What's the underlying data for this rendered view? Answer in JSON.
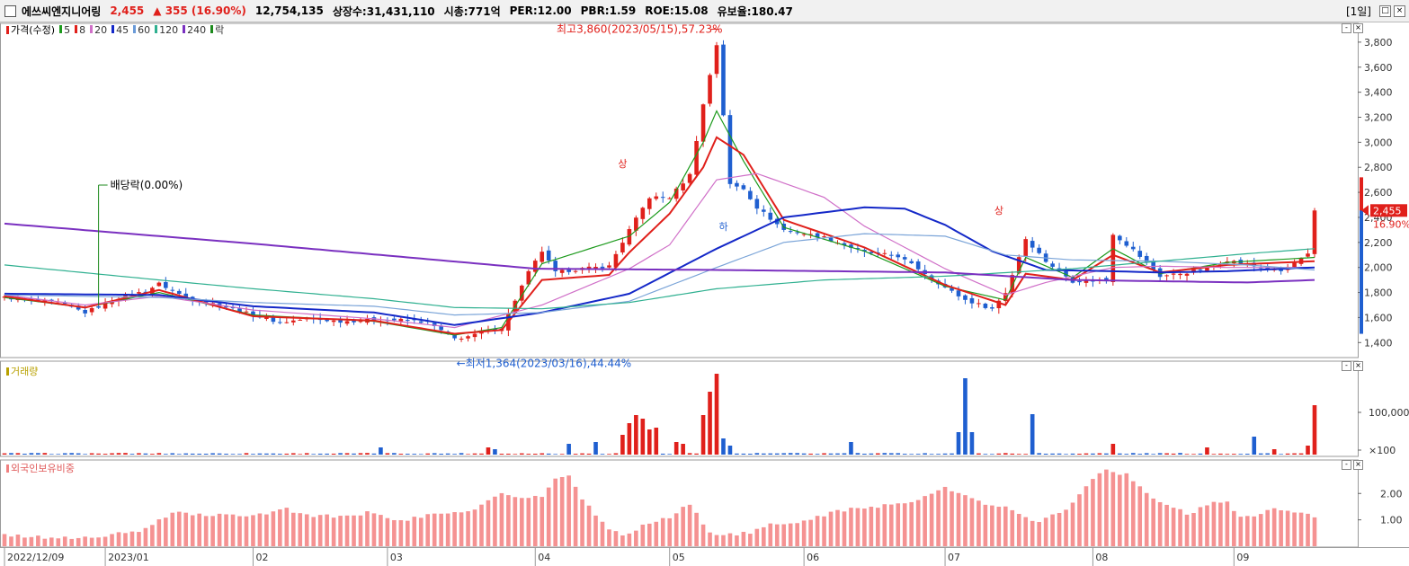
{
  "header": {
    "name": "에쓰씨엔지니어링",
    "price": "2,455",
    "change": "▲ 355 (16.90%)",
    "volume": "12,754,135",
    "listed": "상장수:31,431,110",
    "mcap": "시총:771억",
    "per": "PER:12.00",
    "pbr": "PBR:1.59",
    "roe": "ROE:15.08",
    "float": "유보율:180.47",
    "period": "[1일]"
  },
  "price_legend": {
    "price_label": "가격(수정)",
    "items": [
      {
        "label": "5",
        "color": "#1c9a1c"
      },
      {
        "label": "8",
        "color": "#e0201b"
      },
      {
        "label": "20",
        "color": "#d070c8"
      },
      {
        "label": "45",
        "color": "#1428c8"
      },
      {
        "label": "60",
        "color": "#6a9ad8"
      },
      {
        "label": "120",
        "color": "#2fb090"
      },
      {
        "label": "240",
        "color": "#7a30c0"
      },
      {
        "label": "락",
        "color": "#1c8a1c"
      }
    ]
  },
  "volume_legend": {
    "label": "거래량",
    "color": "#b8a000"
  },
  "foreign_legend": {
    "label": "외국인보유비중",
    "color": "#f08080"
  },
  "annotations": {
    "high": "최고3,860(2023/05/15),57.23%",
    "low": "최저1,364(2023/03/16),44.44%",
    "dividend": "배당락(0.00%)",
    "up_mark": "상",
    "down_mark": "하"
  },
  "price_badge": {
    "price": "2,455",
    "pct": "16.90%"
  },
  "colors": {
    "up": "#e0201b",
    "down": "#1f5fd0",
    "foreign": "#f59292"
  },
  "chart_data": [
    {
      "type": "candlestick",
      "title": "가격(수정)",
      "y_ticks": [
        "3,800",
        "3,600",
        "3,400",
        "3,200",
        "3,000",
        "2,800",
        "2,600",
        "2,400",
        "2,200",
        "2,000",
        "1,800",
        "1,600",
        "1,400"
      ],
      "y_tick_values": [
        3800,
        3600,
        3400,
        3200,
        3000,
        2800,
        2600,
        2400,
        2200,
        2000,
        1800,
        1600,
        1400
      ],
      "ylim": [
        1280,
        3950
      ],
      "x_labels": [
        "2022/12/09",
        "2023/01",
        "02",
        "03",
        "04",
        "05",
        "06",
        "07",
        "08",
        "09"
      ],
      "x_label_days": [
        0,
        15,
        37,
        57,
        79,
        99,
        119,
        140,
        162,
        183
      ],
      "days": 196,
      "series_anchors": [
        {
          "name": "close",
          "points": [
            [
              0,
              1760
            ],
            [
              8,
              1720
            ],
            [
              12,
              1640
            ],
            [
              17,
              1760
            ],
            [
              21,
              1810
            ],
            [
              23,
              1870
            ],
            [
              27,
              1760
            ],
            [
              32,
              1700
            ],
            [
              37,
              1620
            ],
            [
              41,
              1560
            ],
            [
              45,
              1590
            ],
            [
              50,
              1570
            ],
            [
              55,
              1580
            ],
            [
              60,
              1580
            ],
            [
              63,
              1560
            ],
            [
              67,
              1430
            ],
            [
              70,
              1460
            ],
            [
              74,
              1520
            ],
            [
              78,
              1960
            ],
            [
              80,
              2130
            ],
            [
              82,
              1960
            ],
            [
              86,
              1990
            ],
            [
              90,
              2010
            ],
            [
              93,
              2300
            ],
            [
              96,
              2560
            ],
            [
              99,
              2560
            ],
            [
              102,
              2740
            ],
            [
              104,
              3300
            ],
            [
              106,
              3780
            ],
            [
              108,
              2660
            ],
            [
              110,
              2630
            ],
            [
              112,
              2480
            ],
            [
              116,
              2300
            ],
            [
              122,
              2240
            ],
            [
              128,
              2120
            ],
            [
              133,
              2090
            ],
            [
              136,
              1990
            ],
            [
              140,
              1840
            ],
            [
              143,
              1740
            ],
            [
              147,
              1670
            ],
            [
              149,
              1800
            ],
            [
              152,
              2230
            ],
            [
              155,
              2050
            ],
            [
              159,
              1890
            ],
            [
              164,
              1900
            ],
            [
              165,
              2270
            ],
            [
              168,
              2140
            ],
            [
              172,
              1930
            ],
            [
              176,
              1960
            ],
            [
              180,
              2010
            ],
            [
              182,
              2060
            ],
            [
              186,
              2010
            ],
            [
              190,
              1970
            ],
            [
              194,
              2100
            ],
            [
              195,
              2455
            ]
          ]
        },
        {
          "name": "5",
          "points": [
            [
              0,
              1760
            ],
            [
              12,
              1680
            ],
            [
              23,
              1800
            ],
            [
              37,
              1620
            ],
            [
              55,
              1570
            ],
            [
              67,
              1460
            ],
            [
              74,
              1520
            ],
            [
              80,
              2030
            ],
            [
              93,
              2250
            ],
            [
              99,
              2520
            ],
            [
              104,
              3000
            ],
            [
              106,
              3250
            ],
            [
              110,
              2850
            ],
            [
              116,
              2320
            ],
            [
              128,
              2130
            ],
            [
              140,
              1850
            ],
            [
              149,
              1740
            ],
            [
              152,
              2080
            ],
            [
              159,
              1920
            ],
            [
              165,
              2150
            ],
            [
              172,
              1950
            ],
            [
              182,
              2040
            ],
            [
              195,
              2080
            ]
          ]
        },
        {
          "name": "8",
          "points": [
            [
              0,
              1770
            ],
            [
              12,
              1680
            ],
            [
              23,
              1820
            ],
            [
              37,
              1610
            ],
            [
              55,
              1575
            ],
            [
              67,
              1470
            ],
            [
              74,
              1500
            ],
            [
              80,
              1900
            ],
            [
              90,
              1940
            ],
            [
              93,
              2120
            ],
            [
              99,
              2430
            ],
            [
              104,
              2800
            ],
            [
              106,
              3040
            ],
            [
              110,
              2900
            ],
            [
              116,
              2380
            ],
            [
              128,
              2160
            ],
            [
              140,
              1860
            ],
            [
              149,
              1700
            ],
            [
              152,
              1950
            ],
            [
              159,
              1900
            ],
            [
              165,
              2100
            ],
            [
              172,
              1960
            ],
            [
              182,
              2020
            ],
            [
              195,
              2050
            ]
          ]
        },
        {
          "name": "20",
          "points": [
            [
              0,
              1780
            ],
            [
              12,
              1700
            ],
            [
              23,
              1770
            ],
            [
              37,
              1660
            ],
            [
              55,
              1590
            ],
            [
              67,
              1520
            ],
            [
              80,
              1700
            ],
            [
              93,
              1990
            ],
            [
              99,
              2180
            ],
            [
              106,
              2700
            ],
            [
              112,
              2750
            ],
            [
              122,
              2560
            ],
            [
              128,
              2330
            ],
            [
              140,
              1990
            ],
            [
              149,
              1780
            ],
            [
              155,
              1880
            ],
            [
              165,
              2000
            ],
            [
              172,
              2010
            ],
            [
              182,
              2000
            ],
            [
              195,
              2000
            ]
          ]
        },
        {
          "name": "45",
          "points": [
            [
              0,
              1790
            ],
            [
              23,
              1780
            ],
            [
              37,
              1690
            ],
            [
              55,
              1640
            ],
            [
              67,
              1540
            ],
            [
              80,
              1640
            ],
            [
              93,
              1790
            ],
            [
              106,
              2150
            ],
            [
              116,
              2400
            ],
            [
              128,
              2480
            ],
            [
              134,
              2470
            ],
            [
              140,
              2340
            ],
            [
              147,
              2130
            ],
            [
              155,
              1980
            ],
            [
              165,
              1970
            ],
            [
              172,
              1960
            ],
            [
              182,
              1970
            ],
            [
              195,
              2000
            ]
          ]
        },
        {
          "name": "60",
          "points": [
            [
              0,
              1780
            ],
            [
              23,
              1760
            ],
            [
              37,
              1720
            ],
            [
              55,
              1690
            ],
            [
              67,
              1620
            ],
            [
              80,
              1640
            ],
            [
              93,
              1730
            ],
            [
              106,
              2000
            ],
            [
              116,
              2200
            ],
            [
              128,
              2270
            ],
            [
              140,
              2250
            ],
            [
              149,
              2100
            ],
            [
              159,
              2060
            ],
            [
              172,
              2050
            ],
            [
              185,
              2020
            ],
            [
              195,
              1980
            ]
          ]
        },
        {
          "name": "120",
          "points": [
            [
              0,
              2020
            ],
            [
              23,
              1900
            ],
            [
              37,
              1830
            ],
            [
              55,
              1750
            ],
            [
              67,
              1680
            ],
            [
              80,
              1670
            ],
            [
              93,
              1720
            ],
            [
              106,
              1830
            ],
            [
              122,
              1900
            ],
            [
              140,
              1930
            ],
            [
              159,
              1990
            ],
            [
              172,
              2050
            ],
            [
              185,
              2110
            ],
            [
              195,
              2150
            ]
          ]
        },
        {
          "name": "240",
          "points": [
            [
              0,
              2350
            ],
            [
              37,
              2190
            ],
            [
              79,
              1990
            ],
            [
              106,
              1980
            ],
            [
              140,
              1960
            ],
            [
              159,
              1900
            ],
            [
              185,
              1880
            ],
            [
              195,
              1900
            ]
          ]
        }
      ]
    },
    {
      "type": "bar",
      "title": "거래량",
      "y_ticks": [
        "100,000",
        "×100"
      ],
      "y_tick_values": [
        100000,
        100
      ],
      "scale": "log",
      "spikes": [
        [
          18,
          1.8
        ],
        [
          56,
          8
        ],
        [
          72,
          8
        ],
        [
          73,
          6
        ],
        [
          84,
          12
        ],
        [
          88,
          14
        ],
        [
          92,
          22
        ],
        [
          93,
          35
        ],
        [
          94,
          44
        ],
        [
          95,
          40
        ],
        [
          96,
          28
        ],
        [
          97,
          30
        ],
        [
          100,
          14
        ],
        [
          101,
          12
        ],
        [
          104,
          44
        ],
        [
          105,
          70
        ],
        [
          106,
          90
        ],
        [
          107,
          18
        ],
        [
          108,
          10
        ],
        [
          126,
          14
        ],
        [
          142,
          25
        ],
        [
          143,
          85
        ],
        [
          144,
          25
        ],
        [
          153,
          45
        ],
        [
          165,
          12
        ],
        [
          179,
          8
        ],
        [
          186,
          20
        ],
        [
          189,
          6
        ],
        [
          194,
          10
        ],
        [
          195,
          55
        ]
      ]
    },
    {
      "type": "bar",
      "title": "외국인보유비중",
      "y_ticks": [
        "2.00",
        "1.00"
      ],
      "y_tick_values": [
        2.0,
        1.0
      ],
      "ylim": [
        0,
        3.2
      ],
      "series_anchors": [
        [
          0,
          0.4
        ],
        [
          10,
          0.3
        ],
        [
          15,
          0.4
        ],
        [
          20,
          0.55
        ],
        [
          23,
          1.0
        ],
        [
          26,
          1.3
        ],
        [
          30,
          1.15
        ],
        [
          37,
          1.2
        ],
        [
          42,
          1.4
        ],
        [
          45,
          1.2
        ],
        [
          50,
          1.1
        ],
        [
          55,
          1.3
        ],
        [
          59,
          0.95
        ],
        [
          64,
          1.2
        ],
        [
          70,
          1.4
        ],
        [
          74,
          2.0
        ],
        [
          77,
          1.8
        ],
        [
          80,
          1.9
        ],
        [
          82,
          2.5
        ],
        [
          84,
          2.7
        ],
        [
          86,
          1.8
        ],
        [
          88,
          1.2
        ],
        [
          90,
          0.7
        ],
        [
          92,
          0.35
        ],
        [
          95,
          0.8
        ],
        [
          99,
          1.1
        ],
        [
          102,
          1.6
        ],
        [
          105,
          0.5
        ],
        [
          108,
          0.45
        ],
        [
          111,
          0.5
        ],
        [
          114,
          0.8
        ],
        [
          118,
          0.9
        ],
        [
          122,
          1.2
        ],
        [
          126,
          1.4
        ],
        [
          129,
          1.5
        ],
        [
          133,
          1.6
        ],
        [
          136,
          1.8
        ],
        [
          140,
          2.2
        ],
        [
          143,
          1.9
        ],
        [
          146,
          1.6
        ],
        [
          150,
          1.4
        ],
        [
          154,
          0.9
        ],
        [
          157,
          1.3
        ],
        [
          159,
          1.6
        ],
        [
          162,
          2.6
        ],
        [
          164,
          2.85
        ],
        [
          167,
          2.7
        ],
        [
          168,
          2.45
        ],
        [
          170,
          2.0
        ],
        [
          173,
          1.6
        ],
        [
          176,
          1.2
        ],
        [
          179,
          1.6
        ],
        [
          182,
          1.7
        ],
        [
          184,
          1.1
        ],
        [
          186,
          1.2
        ],
        [
          189,
          1.4
        ],
        [
          192,
          1.3
        ],
        [
          195,
          1.1
        ]
      ]
    }
  ]
}
